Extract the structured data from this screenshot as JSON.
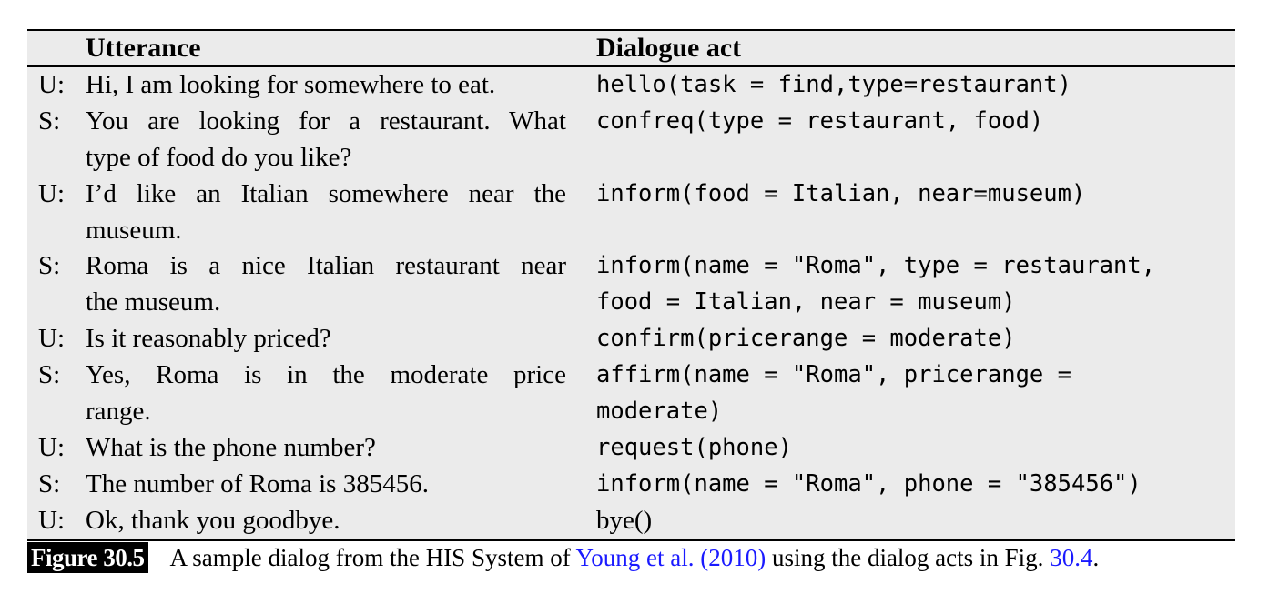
{
  "table": {
    "header": {
      "utterance": "Utterance",
      "dialogue_act": "Dialogue act"
    },
    "rows": [
      {
        "speaker": "U:",
        "utterance": [
          "Hi, I am looking for somewhere to eat."
        ],
        "act": [
          "hello(task = find,type=restaurant)"
        ]
      },
      {
        "speaker": "S:",
        "utterance": [
          "You are looking for a restaurant. What",
          "type of food do you like?"
        ],
        "act": [
          "confreq(type = restaurant, food)"
        ]
      },
      {
        "speaker": "U:",
        "utterance": [
          "I’d like an Italian somewhere near the",
          "museum."
        ],
        "act": [
          "inform(food = Italian, near=museum)"
        ]
      },
      {
        "speaker": "S:",
        "utterance": [
          "Roma is a nice Italian restaurant near",
          "the museum."
        ],
        "act": [
          "inform(name = \"Roma\", type = restaurant,",
          "food = Italian, near = museum)"
        ]
      },
      {
        "speaker": "U:",
        "utterance": [
          "Is it reasonably priced?"
        ],
        "act": [
          "confirm(pricerange = moderate)"
        ]
      },
      {
        "speaker": "S:",
        "utterance": [
          "Yes, Roma is in the moderate price",
          "range."
        ],
        "act": [
          "affirm(name = \"Roma\", pricerange =",
          "moderate)"
        ]
      },
      {
        "speaker": "U:",
        "utterance": [
          "What is the phone number?"
        ],
        "act": [
          "request(phone)"
        ]
      },
      {
        "speaker": "S:",
        "utterance": [
          "The number of Roma is 385456."
        ],
        "act": [
          "inform(name = \"Roma\", phone = \"385456\")"
        ]
      },
      {
        "speaker": "U:",
        "utterance": [
          "Ok, thank you goodbye."
        ],
        "act": [
          "bye()"
        ]
      }
    ]
  },
  "caption": {
    "figure_label": "Figure 30.5",
    "text_before": "A sample dialog from the HIS System of ",
    "citation": "Young et al. (2010)",
    "text_middle": " using the dialog acts in Fig. ",
    "fig_ref": "30.4",
    "text_after": "."
  },
  "colors": {
    "table_bg": "#ebebeb",
    "link": "#1a1aff",
    "badge_bg": "#000000"
  }
}
